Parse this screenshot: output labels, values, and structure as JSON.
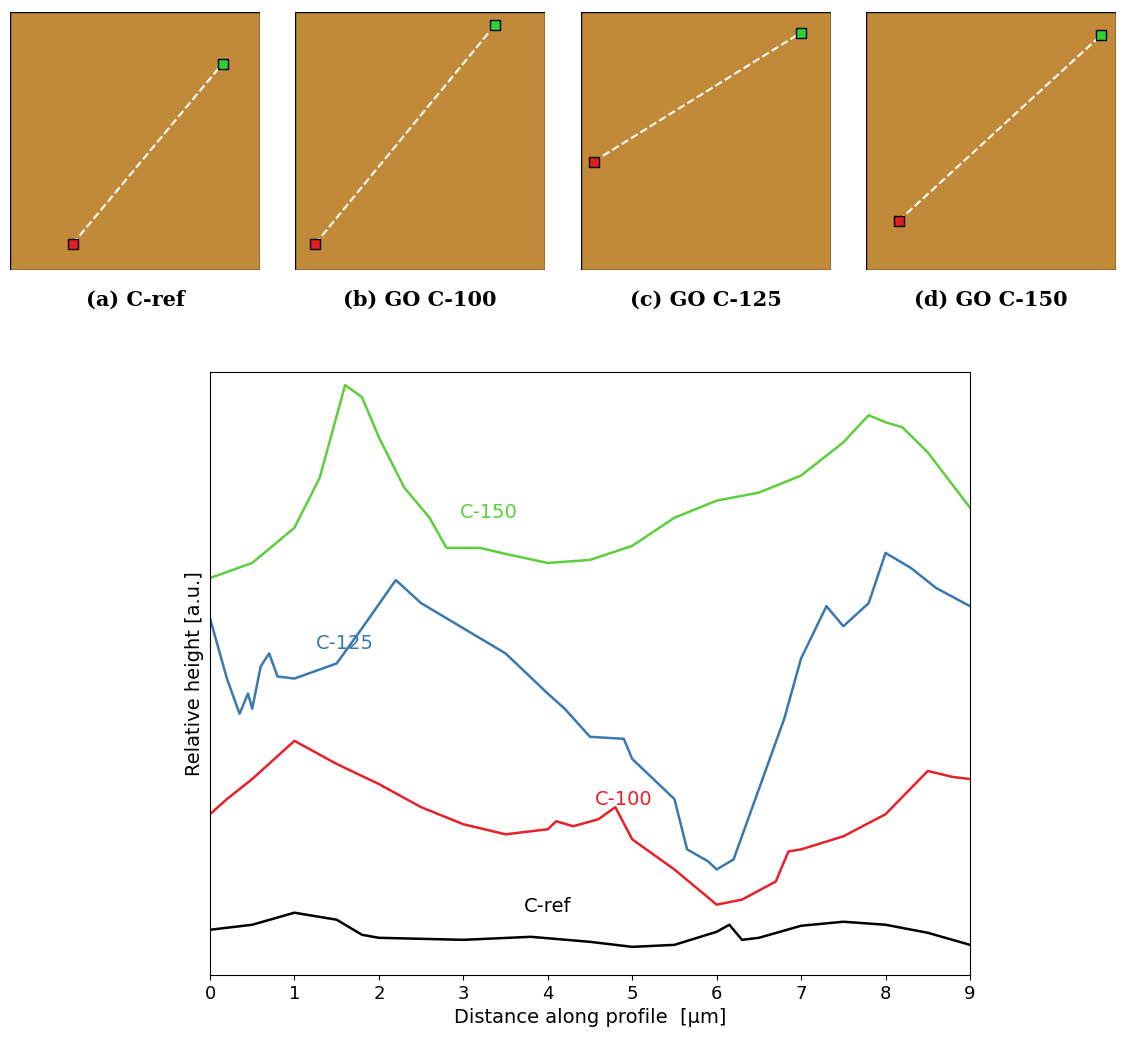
{
  "panels": [
    {
      "caption": "(a) C-ref"
    },
    {
      "caption": "(b) GO C-100"
    },
    {
      "caption": "(c) GO C-125"
    },
    {
      "caption": "(d) GO C-150"
    }
  ],
  "chart_data": {
    "type": "line",
    "x_label": "Distance along profile  [μm]",
    "y_label": "Relative height [a.u.]",
    "xlim": [
      0,
      9
    ],
    "xticks": [
      0,
      1,
      2,
      3,
      4,
      5,
      6,
      7,
      8,
      9
    ],
    "ylim": [
      0,
      60
    ],
    "tick_labels": "x",
    "grid": false,
    "series": [
      {
        "name": "C-ref",
        "color": "#000000",
        "x": [
          0,
          0.5,
          1.0,
          1.5,
          1.8,
          2.0,
          3.0,
          3.8,
          4.5,
          5.0,
          5.5,
          6.0,
          6.15,
          6.3,
          6.5,
          7.0,
          7.5,
          8.0,
          8.5,
          9.0
        ],
        "values": [
          4.5,
          5.0,
          6.2,
          5.5,
          4.0,
          3.7,
          3.5,
          3.8,
          3.3,
          2.8,
          3.0,
          4.3,
          5.0,
          3.5,
          3.7,
          4.9,
          5.3,
          5.0,
          4.2,
          3.0
        ]
      },
      {
        "name": "C-100",
        "color": "#e8202a",
        "x": [
          0,
          0.2,
          0.5,
          1.0,
          1.5,
          2.0,
          2.5,
          3.0,
          3.5,
          4.0,
          4.1,
          4.3,
          4.6,
          4.8,
          5.0,
          5.5,
          6.0,
          6.3,
          6.7,
          6.85,
          7.0,
          7.5,
          8.0,
          8.5,
          8.8,
          9.0
        ],
        "values": [
          16.0,
          17.5,
          19.5,
          23.3,
          21.0,
          19.0,
          16.7,
          15.0,
          14.0,
          14.5,
          15.3,
          14.8,
          15.5,
          16.7,
          13.5,
          10.5,
          7.0,
          7.5,
          9.3,
          12.3,
          12.5,
          13.8,
          16.0,
          20.3,
          19.7,
          19.5
        ]
      },
      {
        "name": "C-125",
        "color": "#3a78b0",
        "x": [
          0,
          0.2,
          0.35,
          0.45,
          0.5,
          0.6,
          0.7,
          0.8,
          1.0,
          1.5,
          1.8,
          2.2,
          2.5,
          3.0,
          3.5,
          4.0,
          4.2,
          4.5,
          4.9,
          5.0,
          5.5,
          5.65,
          5.9,
          6.0,
          6.2,
          6.5,
          6.8,
          7.0,
          7.3,
          7.5,
          7.8,
          8.0,
          8.3,
          8.6,
          9.0
        ],
        "values": [
          35.5,
          29.5,
          26.0,
          28.0,
          26.5,
          30.7,
          32.0,
          29.7,
          29.5,
          31.0,
          34.5,
          39.3,
          37.0,
          34.5,
          32.0,
          28.0,
          26.5,
          23.7,
          23.5,
          21.5,
          17.5,
          12.5,
          11.3,
          10.5,
          11.5,
          18.5,
          25.5,
          31.5,
          36.7,
          34.7,
          37.0,
          42.0,
          40.5,
          38.5,
          36.7
        ]
      },
      {
        "name": "C-150",
        "color": "#5ccf3c",
        "x": [
          0,
          0.5,
          1.0,
          1.3,
          1.6,
          1.8,
          2.0,
          2.3,
          2.6,
          2.8,
          3.2,
          3.5,
          4.0,
          4.5,
          5.0,
          5.5,
          6.0,
          6.5,
          7.0,
          7.5,
          7.8,
          8.0,
          8.2,
          8.5,
          9.0
        ],
        "values": [
          39.5,
          41.0,
          44.5,
          49.5,
          58.7,
          57.5,
          53.5,
          48.5,
          45.5,
          42.5,
          42.5,
          41.9,
          41.0,
          41.3,
          42.7,
          45.5,
          47.2,
          48.0,
          49.7,
          53.0,
          55.7,
          55.0,
          54.5,
          52.0,
          46.5
        ]
      }
    ]
  }
}
